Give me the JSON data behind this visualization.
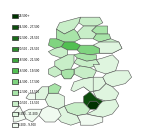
{
  "legend_labels": [
    "26,500+",
    "24,500 - 27,500",
    "22,500 - 25,500",
    "20,500 - 23,500",
    "18,500 - 21,500",
    "16,500 - 19,500",
    "14,500 - 17,500",
    "12,500 - 15,500",
    "10,500 - 13,500",
    "8,500 - 11,500",
    "6,500 - 9,500"
  ],
  "legend_colors": [
    "#003300",
    "#0d4d0d",
    "#1a6b1a",
    "#2e8b2e",
    "#3da63d",
    "#52c052",
    "#80d480",
    "#a8e4a8",
    "#c8eec8",
    "#dff5df",
    "#f0faf0"
  ],
  "border_color": "#555555",
  "background_color": "#ffffff"
}
